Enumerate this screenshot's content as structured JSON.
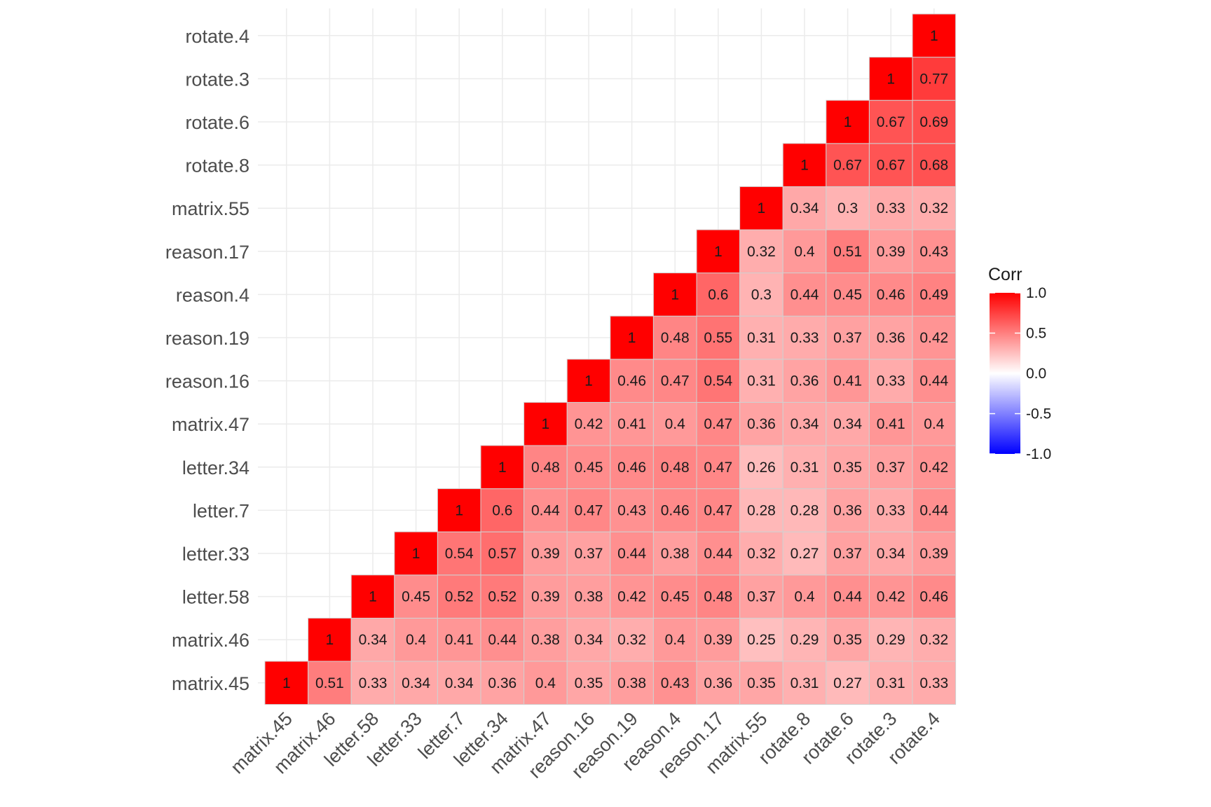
{
  "chart_data": {
    "type": "heatmap",
    "title": "",
    "xlabel": "",
    "ylabel": "",
    "variables": [
      "matrix.45",
      "matrix.46",
      "letter.58",
      "letter.33",
      "letter.7",
      "letter.34",
      "matrix.47",
      "reason.16",
      "reason.19",
      "reason.4",
      "reason.17",
      "matrix.55",
      "rotate.8",
      "rotate.6",
      "rotate.3",
      "rotate.4"
    ],
    "x_labels": [
      "matrix.45",
      "matrix.46",
      "letter.58",
      "letter.33",
      "letter.7",
      "letter.34",
      "matrix.47",
      "reason.16",
      "reason.19",
      "reason.4",
      "reason.17",
      "matrix.55",
      "rotate.8",
      "rotate.6",
      "rotate.3",
      "rotate.4"
    ],
    "y_labels": [
      "matrix.45",
      "matrix.46",
      "letter.58",
      "letter.33",
      "letter.7",
      "letter.34",
      "matrix.47",
      "reason.16",
      "reason.19",
      "reason.4",
      "reason.17",
      "matrix.55",
      "rotate.8",
      "rotate.6",
      "rotate.3",
      "rotate.4"
    ],
    "matrix": [
      [
        1,
        0.51,
        0.33,
        0.34,
        0.34,
        0.36,
        0.4,
        0.35,
        0.38,
        0.43,
        0.36,
        0.35,
        0.31,
        0.27,
        0.31,
        0.33
      ],
      [
        null,
        1,
        0.34,
        0.4,
        0.41,
        0.44,
        0.38,
        0.34,
        0.32,
        0.4,
        0.39,
        0.25,
        0.29,
        0.35,
        0.29,
        0.32
      ],
      [
        null,
        null,
        1,
        0.45,
        0.52,
        0.52,
        0.39,
        0.38,
        0.42,
        0.45,
        0.48,
        0.37,
        0.4,
        0.44,
        0.42,
        0.46
      ],
      [
        null,
        null,
        null,
        1,
        0.54,
        0.57,
        0.39,
        0.37,
        0.44,
        0.38,
        0.44,
        0.32,
        0.27,
        0.37,
        0.34,
        0.39
      ],
      [
        null,
        null,
        null,
        null,
        1,
        0.6,
        0.44,
        0.47,
        0.43,
        0.46,
        0.47,
        0.28,
        0.28,
        0.36,
        0.33,
        0.44
      ],
      [
        null,
        null,
        null,
        null,
        null,
        1,
        0.48,
        0.45,
        0.46,
        0.48,
        0.47,
        0.26,
        0.31,
        0.35,
        0.37,
        0.42
      ],
      [
        null,
        null,
        null,
        null,
        null,
        null,
        1,
        0.42,
        0.41,
        0.4,
        0.47,
        0.36,
        0.34,
        0.34,
        0.41,
        0.4
      ],
      [
        null,
        null,
        null,
        null,
        null,
        null,
        null,
        1,
        0.46,
        0.47,
        0.54,
        0.31,
        0.36,
        0.41,
        0.33,
        0.44
      ],
      [
        null,
        null,
        null,
        null,
        null,
        null,
        null,
        null,
        1,
        0.48,
        0.55,
        0.31,
        0.33,
        0.37,
        0.36,
        0.42
      ],
      [
        null,
        null,
        null,
        null,
        null,
        null,
        null,
        null,
        null,
        1,
        0.6,
        0.3,
        0.44,
        0.45,
        0.46,
        0.49
      ],
      [
        null,
        null,
        null,
        null,
        null,
        null,
        null,
        null,
        null,
        null,
        1,
        0.32,
        0.4,
        0.51,
        0.39,
        0.43
      ],
      [
        null,
        null,
        null,
        null,
        null,
        null,
        null,
        null,
        null,
        null,
        null,
        1,
        0.34,
        0.3,
        0.33,
        0.32
      ],
      [
        null,
        null,
        null,
        null,
        null,
        null,
        null,
        null,
        null,
        null,
        null,
        null,
        1,
        0.67,
        0.67,
        0.68
      ],
      [
        null,
        null,
        null,
        null,
        null,
        null,
        null,
        null,
        null,
        null,
        null,
        null,
        null,
        1,
        0.67,
        0.69
      ],
      [
        null,
        null,
        null,
        null,
        null,
        null,
        null,
        null,
        null,
        null,
        null,
        null,
        null,
        null,
        1,
        0.77
      ],
      [
        null,
        null,
        null,
        null,
        null,
        null,
        null,
        null,
        null,
        null,
        null,
        null,
        null,
        null,
        null,
        1
      ]
    ],
    "color_scale": {
      "low": "#0000ff",
      "mid": "#ffffff",
      "high": "#ff0000",
      "limits": [
        -1,
        1
      ]
    },
    "grid": true,
    "legend": {
      "title": "Corr",
      "position": "right",
      "ticks": [
        1.0,
        0.5,
        0.0,
        -0.5,
        -1.0
      ],
      "tick_labels": [
        "1.0",
        "0.5",
        "0.0",
        "-0.5",
        "-1.0"
      ]
    }
  }
}
